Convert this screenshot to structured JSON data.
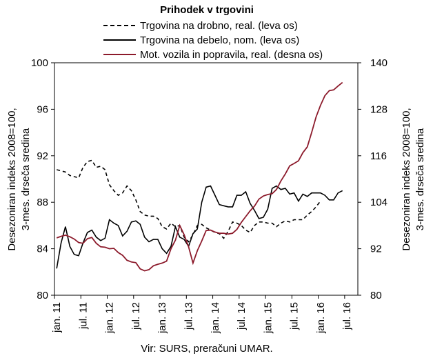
{
  "chart_data": {
    "type": "line",
    "title": "Prihodek v trgovini",
    "ylabel_left": "Desezoniran indeks 2008=100, 3-mes. drseča sredina",
    "ylabel_right": "Desezoniran indeks 2008=100, 3-mes. drseča sredina",
    "ylim_left": [
      80,
      100
    ],
    "ylim_right": [
      80,
      140
    ],
    "yticks_left": [
      80,
      84,
      88,
      92,
      96,
      100
    ],
    "yticks_right": [
      80,
      92,
      104,
      116,
      128,
      140
    ],
    "x_tick_labels": [
      "jan. 11",
      "jul. 11",
      "jan. 12",
      "jul. 12",
      "jan. 13",
      "jul. 13",
      "jan. 14",
      "jul. 14",
      "jan. 15",
      "jul. 15",
      "jan. 16",
      "jul. 16"
    ],
    "x_start": "jan. 11",
    "legend_position": "top",
    "grid": false,
    "source": "Vir: SURS, preračuni UMAR.",
    "series": [
      {
        "name": "Trgovina na drobno, real. (leva os)",
        "axis": "left",
        "style": "dashed",
        "color": "#000000",
        "values": [
          90.8,
          90.7,
          90.6,
          90.3,
          90.2,
          90.1,
          91.0,
          91.5,
          91.6,
          91.0,
          91.1,
          90.8,
          89.5,
          89.0,
          88.6,
          88.8,
          89.4,
          89.0,
          88.2,
          87.2,
          86.9,
          86.8,
          86.8,
          86.6,
          85.9,
          85.7,
          86.2,
          85.9,
          86.0,
          85.0,
          84.6,
          85.2,
          86.0,
          86.1,
          85.8,
          85.6,
          85.4,
          85.3,
          84.9,
          85.5,
          86.3,
          86.2,
          86.0,
          85.6,
          85.4,
          86.0,
          86.3,
          86.3,
          86.2,
          86.2,
          85.9,
          86.2,
          86.4,
          86.3,
          86.5,
          86.5,
          86.5,
          86.9,
          87.2,
          87.6,
          88.1
        ]
      },
      {
        "name": "Trgovina na debelo, nom. (leva os)",
        "axis": "left",
        "style": "solid",
        "color": "#000000",
        "values": [
          82.3,
          84.5,
          85.9,
          84.2,
          83.5,
          83.4,
          84.5,
          85.4,
          85.6,
          85.0,
          84.7,
          84.9,
          86.5,
          86.2,
          86.0,
          85.1,
          85.5,
          86.3,
          86.4,
          86.1,
          85.0,
          84.6,
          84.8,
          84.8,
          84.0,
          83.6,
          84.2,
          85.9,
          85.0,
          84.8,
          84.2,
          85.3,
          85.7,
          88.0,
          89.3,
          89.4,
          88.6,
          87.8,
          87.7,
          87.6,
          87.6,
          88.6,
          88.6,
          88.9,
          87.9,
          87.3,
          86.6,
          86.7,
          87.4,
          89.2,
          89.4,
          89.1,
          89.2,
          88.7,
          88.8,
          88.1,
          88.7,
          88.5,
          88.8,
          88.8,
          88.8,
          88.6,
          88.2,
          88.2,
          88.8,
          89.0
        ]
      },
      {
        "name": "Mot. vozila in popravila, real. (desna os)",
        "axis": "right",
        "style": "solid",
        "color": "#8c1a2b",
        "values": [
          94.8,
          95.2,
          95.5,
          95.1,
          94.5,
          93.6,
          93.4,
          94.6,
          94.9,
          93.4,
          92.5,
          92.4,
          92.0,
          92.1,
          91.0,
          90.3,
          89.0,
          88.6,
          88.4,
          86.8,
          86.3,
          86.6,
          87.6,
          88.0,
          88.3,
          88.8,
          92.0,
          94.2,
          98.0,
          95.6,
          92.5,
          88.3,
          91.5,
          94.0,
          96.7,
          96.8,
          96.3,
          96.0,
          96.0,
          95.8,
          96.0,
          97.0,
          98.8,
          100.3,
          101.8,
          103.0,
          104.8,
          105.6,
          106.0,
          106.2,
          107.3,
          109.5,
          111.3,
          113.4,
          114.0,
          114.7,
          116.8,
          118.3,
          122.0,
          126.0,
          129.0,
          131.5,
          132.8,
          133.0,
          134.0,
          134.9
        ]
      }
    ]
  }
}
